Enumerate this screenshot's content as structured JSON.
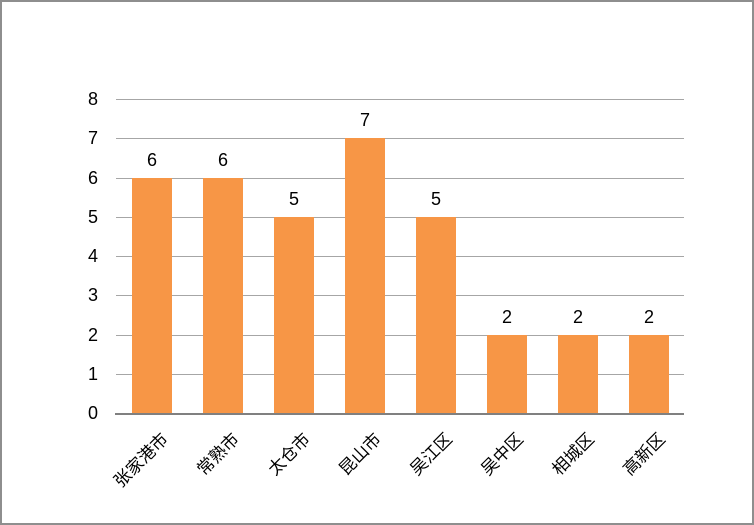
{
  "chart_data": {
    "type": "bar",
    "categories": [
      "张家港市",
      "常熟市",
      "太仓市",
      "昆山市",
      "吴江区",
      "吴中区",
      "相城区",
      "高新区"
    ],
    "values": [
      6,
      6,
      5,
      7,
      5,
      2,
      2,
      2
    ],
    "data_labels": [
      6,
      6,
      5,
      7,
      5,
      2,
      2,
      2
    ],
    "yticks": [
      0,
      1,
      2,
      3,
      4,
      5,
      6,
      7,
      8
    ],
    "title": "",
    "xlabel": "",
    "ylabel": "",
    "ylim": [
      0,
      8
    ],
    "grid": true,
    "legend_position": "none",
    "colors": {
      "bar_fill": "#F79646",
      "gridline": "#A6A6A6",
      "axis_line": "#808080",
      "text": "#000000",
      "frame_border": "#8E8E8E",
      "background": "#FFFFFF"
    }
  }
}
